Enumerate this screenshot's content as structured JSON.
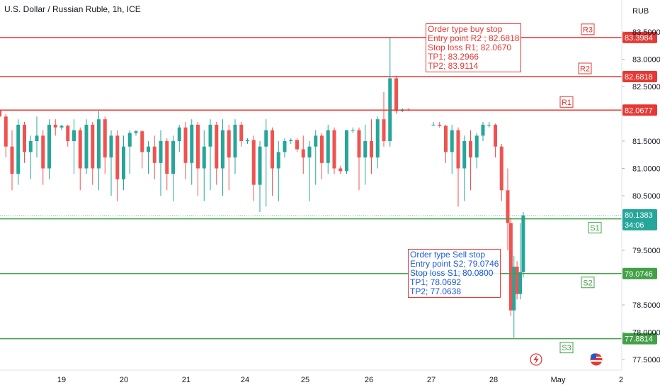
{
  "header": {
    "title": "U.S. Dollar / Russian Ruble, 1h, ICE",
    "currency": "RUB",
    "countdown": "34:06"
  },
  "annotations": {
    "buy": [
      "Order type buy stop",
      "Entry point R2 ; 82.6818",
      "Stop loss R1; 82.0670",
      "TP1; 83.2966",
      "TP2; 83.9114"
    ],
    "sell": [
      "Order type Sell stop",
      "Entry point S2; 79.0746",
      "Stop loss S1; 80.0800",
      "TP1; 78.0692",
      "TP2; 77.0638"
    ]
  },
  "colors": {
    "resistance": "#e53935",
    "support": "#43a047",
    "up_candle": "#26a69a",
    "down_candle": "#ef5350",
    "current_price": "#26a69a"
  },
  "chart_data": {
    "type": "candlestick",
    "title": "U.S. Dollar / Russian Ruble, 1h, ICE",
    "y_axis": {
      "unit": "RUB",
      "ylim": [
        77.3,
        83.65
      ],
      "ticks": [
        "77.5000",
        "78.0000",
        "78.5000",
        "79.5000",
        "80.5000",
        "81.0000",
        "81.5000",
        "82.5000",
        "83.0000",
        "83.5000"
      ],
      "tick_values": [
        77.5,
        78.0,
        78.5,
        79.5,
        80.5,
        81.0,
        81.5,
        82.5,
        83.0,
        83.5
      ]
    },
    "x_axis": {
      "ticks": [
        "19",
        "20",
        "21",
        "24",
        "25",
        "26",
        "27",
        "28",
        "May",
        "2"
      ],
      "tick_positions": [
        0.5,
        1.5,
        2.5,
        3.5,
        4.5,
        5.5,
        6.5,
        7.5,
        8.5,
        9.5
      ]
    },
    "levels": [
      {
        "label": "R3",
        "value": 83.3984,
        "price_label": "83.3984",
        "color": "red"
      },
      {
        "label": "R2",
        "value": 82.6818,
        "price_label": "82.6818",
        "color": "red"
      },
      {
        "label": "R1",
        "value": 82.0677,
        "price_label": "82.0677",
        "color": "red"
      },
      {
        "label": "S1",
        "value": 80.076,
        "price_label": "80.0760",
        "color": "green"
      },
      {
        "label": "S2",
        "value": 79.0746,
        "price_label": "79.0746",
        "color": "green"
      },
      {
        "label": "S3",
        "value": 77.8814,
        "price_label": "77.8814",
        "color": "green"
      }
    ],
    "current_price": 80.1383,
    "current_price_label": "80.1383",
    "candles": [
      {
        "t": -0.5,
        "o": 82.06,
        "h": 82.08,
        "l": 81.9,
        "c": 81.95
      },
      {
        "t": -0.4,
        "o": 81.95,
        "h": 82.0,
        "l": 81.2,
        "c": 81.4
      },
      {
        "t": -0.3,
        "o": 81.4,
        "h": 81.7,
        "l": 80.6,
        "c": 80.9
      },
      {
        "t": -0.2,
        "o": 80.9,
        "h": 81.9,
        "l": 80.7,
        "c": 81.8
      },
      {
        "t": -0.1,
        "o": 81.8,
        "h": 81.85,
        "l": 81.1,
        "c": 81.3
      },
      {
        "t": 0.0,
        "o": 81.3,
        "h": 81.6,
        "l": 80.8,
        "c": 81.5
      },
      {
        "t": 0.1,
        "o": 81.5,
        "h": 81.95,
        "l": 81.2,
        "c": 81.6
      },
      {
        "t": 0.2,
        "o": 81.6,
        "h": 81.7,
        "l": 80.7,
        "c": 81.0
      },
      {
        "t": 0.3,
        "o": 81.0,
        "h": 81.9,
        "l": 80.8,
        "c": 81.8
      },
      {
        "t": 0.4,
        "o": 81.8,
        "h": 81.9,
        "l": 81.6,
        "c": 81.75
      },
      {
        "t": 0.5,
        "o": 81.75,
        "h": 81.8,
        "l": 81.7,
        "c": 81.78
      },
      {
        "t": 0.6,
        "o": 81.78,
        "h": 81.8,
        "l": 81.4,
        "c": 81.5
      },
      {
        "t": 0.7,
        "o": 81.5,
        "h": 81.9,
        "l": 80.9,
        "c": 81.7
      },
      {
        "t": 0.8,
        "o": 81.7,
        "h": 81.75,
        "l": 80.6,
        "c": 81.0
      },
      {
        "t": 0.9,
        "o": 81.0,
        "h": 81.9,
        "l": 80.9,
        "c": 81.8
      },
      {
        "t": 1.0,
        "o": 81.8,
        "h": 81.85,
        "l": 80.7,
        "c": 81.0
      },
      {
        "t": 1.1,
        "o": 81.0,
        "h": 82.05,
        "l": 80.6,
        "c": 81.9
      },
      {
        "t": 1.2,
        "o": 81.9,
        "h": 81.95,
        "l": 80.9,
        "c": 81.2
      },
      {
        "t": 1.3,
        "o": 81.2,
        "h": 81.7,
        "l": 80.5,
        "c": 81.6
      },
      {
        "t": 1.4,
        "o": 81.6,
        "h": 81.7,
        "l": 80.4,
        "c": 80.8
      },
      {
        "t": 1.5,
        "o": 80.8,
        "h": 81.6,
        "l": 80.6,
        "c": 81.4
      },
      {
        "t": 1.6,
        "o": 81.4,
        "h": 81.7,
        "l": 80.9,
        "c": 81.65
      },
      {
        "t": 1.7,
        "o": 81.65,
        "h": 81.7,
        "l": 81.6,
        "c": 81.68
      },
      {
        "t": 1.8,
        "o": 81.68,
        "h": 81.7,
        "l": 81.0,
        "c": 81.3
      },
      {
        "t": 1.9,
        "o": 81.3,
        "h": 81.5,
        "l": 80.9,
        "c": 81.4
      },
      {
        "t": 2.0,
        "o": 81.4,
        "h": 81.6,
        "l": 80.8,
        "c": 81.1
      },
      {
        "t": 2.1,
        "o": 81.1,
        "h": 81.7,
        "l": 80.5,
        "c": 81.5
      },
      {
        "t": 2.2,
        "o": 81.5,
        "h": 81.55,
        "l": 80.6,
        "c": 80.9
      },
      {
        "t": 2.3,
        "o": 80.9,
        "h": 81.6,
        "l": 80.4,
        "c": 81.5
      },
      {
        "t": 2.4,
        "o": 81.5,
        "h": 81.8,
        "l": 81.3,
        "c": 81.75
      },
      {
        "t": 2.5,
        "o": 81.75,
        "h": 81.85,
        "l": 80.8,
        "c": 81.1
      },
      {
        "t": 2.6,
        "o": 81.1,
        "h": 81.9,
        "l": 80.7,
        "c": 81.8
      },
      {
        "t": 2.7,
        "o": 81.8,
        "h": 81.85,
        "l": 80.5,
        "c": 81.0
      },
      {
        "t": 2.8,
        "o": 81.0,
        "h": 81.7,
        "l": 80.4,
        "c": 81.4
      },
      {
        "t": 2.9,
        "o": 81.4,
        "h": 81.9,
        "l": 80.6,
        "c": 81.8
      },
      {
        "t": 3.0,
        "o": 81.8,
        "h": 81.85,
        "l": 80.7,
        "c": 81.0
      },
      {
        "t": 3.1,
        "o": 81.0,
        "h": 81.9,
        "l": 80.5,
        "c": 81.7
      },
      {
        "t": 3.2,
        "o": 81.7,
        "h": 81.8,
        "l": 80.6,
        "c": 81.2
      },
      {
        "t": 3.3,
        "o": 81.2,
        "h": 81.9,
        "l": 80.9,
        "c": 81.8
      },
      {
        "t": 3.4,
        "o": 81.8,
        "h": 81.85,
        "l": 81.4,
        "c": 81.5
      },
      {
        "t": 3.5,
        "o": 81.5,
        "h": 81.55,
        "l": 81.45,
        "c": 81.52
      },
      {
        "t": 3.6,
        "o": 81.52,
        "h": 81.6,
        "l": 80.4,
        "c": 80.7
      },
      {
        "t": 3.7,
        "o": 80.7,
        "h": 81.5,
        "l": 80.2,
        "c": 81.4
      },
      {
        "t": 3.8,
        "o": 81.4,
        "h": 81.9,
        "l": 80.3,
        "c": 81.7
      },
      {
        "t": 3.9,
        "o": 81.7,
        "h": 81.75,
        "l": 80.5,
        "c": 81.0
      },
      {
        "t": 4.0,
        "o": 81.0,
        "h": 81.5,
        "l": 80.4,
        "c": 81.3
      },
      {
        "t": 4.1,
        "o": 81.3,
        "h": 81.55,
        "l": 81.2,
        "c": 81.5
      },
      {
        "t": 4.2,
        "o": 81.5,
        "h": 81.55,
        "l": 81.45,
        "c": 81.52
      },
      {
        "t": 4.3,
        "o": 81.52,
        "h": 81.55,
        "l": 81.3,
        "c": 81.35
      },
      {
        "t": 4.4,
        "o": 81.35,
        "h": 81.6,
        "l": 80.9,
        "c": 81.2
      },
      {
        "t": 4.5,
        "o": 81.2,
        "h": 81.5,
        "l": 80.4,
        "c": 81.4
      },
      {
        "t": 4.6,
        "o": 81.4,
        "h": 81.7,
        "l": 80.7,
        "c": 81.6
      },
      {
        "t": 4.7,
        "o": 81.6,
        "h": 81.65,
        "l": 80.8,
        "c": 81.1
      },
      {
        "t": 4.8,
        "o": 81.1,
        "h": 81.8,
        "l": 80.9,
        "c": 81.7
      },
      {
        "t": 4.9,
        "o": 81.7,
        "h": 81.75,
        "l": 80.9,
        "c": 81.0
      },
      {
        "t": 5.0,
        "o": 81.0,
        "h": 81.05,
        "l": 80.9,
        "c": 80.95
      },
      {
        "t": 5.1,
        "o": 80.95,
        "h": 81.7,
        "l": 80.9,
        "c": 81.7
      },
      {
        "t": 5.2,
        "o": 81.7,
        "h": 81.75,
        "l": 81.65,
        "c": 81.7
      },
      {
        "t": 5.3,
        "o": 81.7,
        "h": 81.75,
        "l": 80.6,
        "c": 81.2
      },
      {
        "t": 5.4,
        "o": 81.2,
        "h": 81.8,
        "l": 80.7,
        "c": 81.5
      },
      {
        "t": 5.5,
        "o": 81.5,
        "h": 81.9,
        "l": 80.9,
        "c": 81.2
      },
      {
        "t": 5.6,
        "o": 81.2,
        "h": 81.95,
        "l": 81.0,
        "c": 81.9
      },
      {
        "t": 5.7,
        "o": 81.9,
        "h": 82.4,
        "l": 81.4,
        "c": 81.5
      },
      {
        "t": 5.8,
        "o": 81.5,
        "h": 83.4,
        "l": 81.4,
        "c": 82.65
      },
      {
        "t": 5.9,
        "o": 82.65,
        "h": 82.7,
        "l": 82.0,
        "c": 82.05
      },
      {
        "t": 6.0,
        "o": 82.05,
        "h": 82.1,
        "l": 82.03,
        "c": 82.08
      },
      {
        "t": 6.1,
        "o": 82.08,
        "h": 82.1,
        "l": 82.05,
        "c": 82.06
      },
      {
        "t": 6.5,
        "o": 81.8,
        "h": 81.85,
        "l": 81.78,
        "c": 81.8
      },
      {
        "t": 6.6,
        "o": 81.8,
        "h": 81.85,
        "l": 81.75,
        "c": 81.78
      },
      {
        "t": 6.7,
        "o": 81.78,
        "h": 81.8,
        "l": 81.1,
        "c": 81.3
      },
      {
        "t": 6.8,
        "o": 81.3,
        "h": 81.8,
        "l": 80.9,
        "c": 81.7
      },
      {
        "t": 6.9,
        "o": 81.7,
        "h": 81.75,
        "l": 80.3,
        "c": 81.0
      },
      {
        "t": 7.0,
        "o": 81.0,
        "h": 81.6,
        "l": 80.4,
        "c": 81.5
      },
      {
        "t": 7.1,
        "o": 81.5,
        "h": 81.7,
        "l": 80.6,
        "c": 81.2
      },
      {
        "t": 7.2,
        "o": 81.2,
        "h": 81.65,
        "l": 81.0,
        "c": 81.6
      },
      {
        "t": 7.3,
        "o": 81.6,
        "h": 81.85,
        "l": 81.5,
        "c": 81.8
      },
      {
        "t": 7.4,
        "o": 81.8,
        "h": 81.85,
        "l": 81.75,
        "c": 81.8
      },
      {
        "t": 7.5,
        "o": 81.8,
        "h": 81.82,
        "l": 81.2,
        "c": 81.4
      },
      {
        "t": 7.6,
        "o": 81.4,
        "h": 81.45,
        "l": 80.4,
        "c": 80.6
      },
      {
        "t": 7.7,
        "o": 80.6,
        "h": 81.0,
        "l": 79.5,
        "c": 80.0
      },
      {
        "t": 7.75,
        "o": 80.0,
        "h": 80.1,
        "l": 78.3,
        "c": 78.4
      },
      {
        "t": 7.8,
        "o": 78.4,
        "h": 79.4,
        "l": 77.9,
        "c": 79.2
      },
      {
        "t": 7.85,
        "o": 79.2,
        "h": 79.3,
        "l": 78.6,
        "c": 78.7
      },
      {
        "t": 7.9,
        "o": 78.7,
        "h": 80.0,
        "l": 78.6,
        "c": 79.1
      },
      {
        "t": 7.95,
        "o": 79.1,
        "h": 80.2,
        "l": 79.0,
        "c": 80.14
      }
    ]
  }
}
